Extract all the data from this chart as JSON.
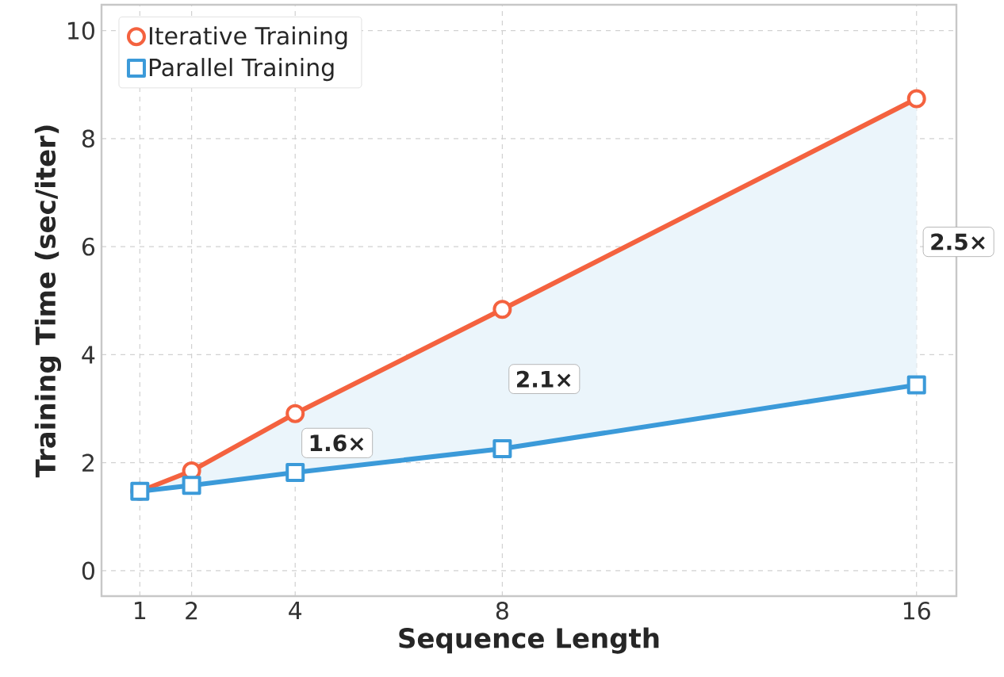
{
  "chart_data": {
    "type": "line",
    "xlabel": "Sequence Length",
    "ylabel": "Training Time (sec/iter)",
    "x": [
      1,
      2,
      4,
      8,
      16
    ],
    "series": [
      {
        "name": "Iterative Training",
        "color": "#f4623f",
        "marker": "circle",
        "values": [
          1.47,
          1.85,
          2.91,
          4.84,
          8.74
        ]
      },
      {
        "name": "Parallel Training",
        "color": "#3b9ad9",
        "marker": "square",
        "values": [
          1.47,
          1.58,
          1.82,
          2.26,
          3.44
        ]
      }
    ],
    "annotations": [
      "1.6×",
      "2.1×",
      "2.5×"
    ],
    "xlim": [
      0.26,
      16.77
    ],
    "ylim": [
      -0.47,
      10.48
    ],
    "xticks": [
      1,
      2,
      4,
      8,
      16
    ],
    "yticks": [
      0,
      2,
      4,
      6,
      8,
      10
    ],
    "grid": true,
    "legend": "top left",
    "line_style": "solid"
  }
}
